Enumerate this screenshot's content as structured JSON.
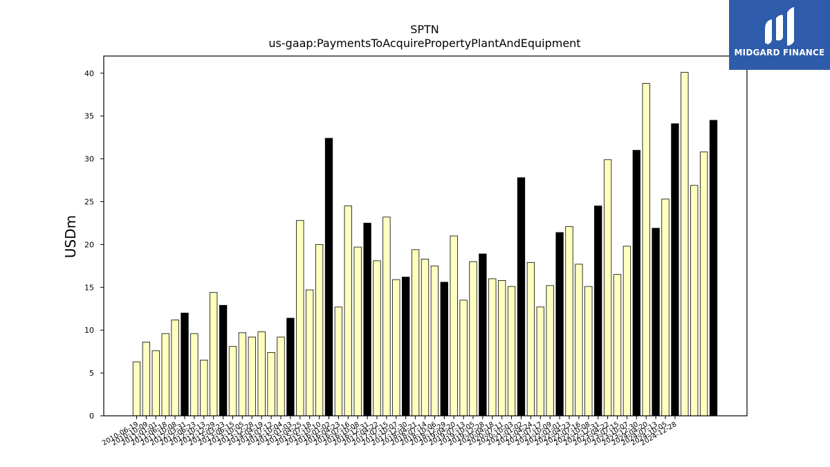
{
  "logo": {
    "text": "MIDGARD FINANCE",
    "background": "#2e5caa"
  },
  "chart_data": {
    "type": "bar",
    "title": "SPTN",
    "subtitle": "us-gaap:PaymentsToAcquirePropertyPlantAndEquipment",
    "ylabel": "USDm",
    "xlabel": "",
    "ylim": [
      0,
      42
    ],
    "yticks": [
      0,
      5,
      10,
      15,
      20,
      25,
      30,
      35,
      40
    ],
    "grid": false,
    "colors": {
      "quarter": "#ffffc0",
      "annual": "#000000",
      "edge": "#000000"
    },
    "categories": [
      "2010-06-19",
      "2010-10-09",
      "2011-01-01",
      "2011-06-18",
      "2011-10-08",
      "2012-03-31",
      "2012-06-23",
      "2012-10-13",
      "2012-12-29",
      "2013-03-23",
      "2013-06-15",
      "2013-10-05",
      "2013-12-28",
      "2014-04-19",
      "2014-07-12",
      "2014-10-04",
      "2015-01-03",
      "2015-04-25",
      "2015-07-18",
      "2015-10-10",
      "2016-01-02",
      "2016-04-23",
      "2016-07-16",
      "2016-10-08",
      "2016-12-31",
      "2017-04-22",
      "2017-07-15",
      "2017-10-07",
      "2017-12-30",
      "2018-04-21",
      "2018-07-14",
      "2018-10-06",
      "2018-12-29",
      "2019-04-20",
      "2019-07-13",
      "2019-10-05",
      "2019-12-28",
      "2020-04-18",
      "2020-07-11",
      "2020-10-03",
      "2021-01-02",
      "2021-04-24",
      "2021-07-17",
      "2021-10-09",
      "2022-01-01",
      "2022-04-23",
      "2022-07-16",
      "2022-10-08",
      "2022-12-31",
      "2023-04-22",
      "2023-07-15",
      "2023-10-07",
      "2023-12-30",
      "2024-04-20",
      "2024-07-13",
      "2024-10-05",
      "2024-12-28"
    ],
    "tick_labels": [
      "2010-06-19",
      "2010-10-09",
      "2011-01-01",
      "2011-06-18",
      "2011-10-08",
      "2012-03-31",
      "2012-06-23",
      "2012-10-13",
      "2012-12-29",
      "2013-03-23",
      "2013-06-15",
      "2013-10-05",
      "2013-12-28",
      "2014-04-19",
      "2014-07-12",
      "2014-10-04",
      "2015-01-03",
      "2015-04-25",
      "2015-07-18",
      "2015-10-10",
      "2016-01-02",
      "2016-04-23",
      "2016-07-16",
      "2016-10-08",
      "2016-12-31",
      "2017-04-22",
      "2017-07-15",
      "2017-10-07",
      "2017-12-30",
      "2018-04-21",
      "2018-07-14",
      "2018-10-06",
      "2018-12-29",
      "2019-04-20",
      "2019-07-13",
      "2019-10-05",
      "2019-12-28",
      "2020-04-18",
      "2020-07-11",
      "2020-10-03",
      "2021-01-02",
      "2021-04-24",
      "2021-07-17",
      "2021-10-09",
      "2022-01-01",
      "2022-04-23",
      "2022-07-16",
      "2022-10-08",
      "2022-12-31",
      "2023-04-22",
      "2023-07-15",
      "2023-10-07",
      "2023-12-30",
      "2024-04-20",
      "2024-07-13",
      "2024-10-05",
      "2024-12-28"
    ],
    "values": [
      6.3,
      8.6,
      7.6,
      9.6,
      11.2,
      12.0,
      9.6,
      6.5,
      14.4,
      12.9,
      8.1,
      9.7,
      9.2,
      9.8,
      7.4,
      9.2,
      11.4,
      22.8,
      14.7,
      20.0,
      32.4,
      12.7,
      24.5,
      19.7,
      22.5,
      18.1,
      23.2,
      15.9,
      16.2,
      19.4,
      18.3,
      17.5,
      15.6,
      21.0,
      13.5,
      18.0,
      18.9,
      16.0,
      15.8,
      15.1,
      27.8,
      17.9,
      12.7,
      15.2,
      21.4,
      22.1,
      17.7,
      15.1,
      24.5,
      29.9,
      16.5,
      19.8,
      31.0,
      38.8,
      21.9,
      25.3,
      34.1
    ],
    "kinds": [
      "q",
      "q",
      "q",
      "q",
      "q",
      "a",
      "q",
      "q",
      "q",
      "a",
      "q",
      "q",
      "q",
      "q",
      "q",
      "q",
      "a",
      "q",
      "q",
      "q",
      "a",
      "q",
      "q",
      "q",
      "a",
      "q",
      "q",
      "q",
      "a",
      "q",
      "q",
      "q",
      "a",
      "q",
      "q",
      "q",
      "a",
      "q",
      "q",
      "q",
      "a",
      "q",
      "q",
      "q",
      "a",
      "q",
      "q",
      "q",
      "a",
      "q",
      "q",
      "q",
      "a",
      "q",
      "a",
      "q",
      "a"
    ],
    "extra_bars": [
      {
        "value": 40.1,
        "kind": "q"
      },
      {
        "value": 26.9,
        "kind": "q"
      },
      {
        "value": 30.8,
        "kind": "q"
      },
      {
        "value": 34.5,
        "kind": "a"
      }
    ]
  }
}
